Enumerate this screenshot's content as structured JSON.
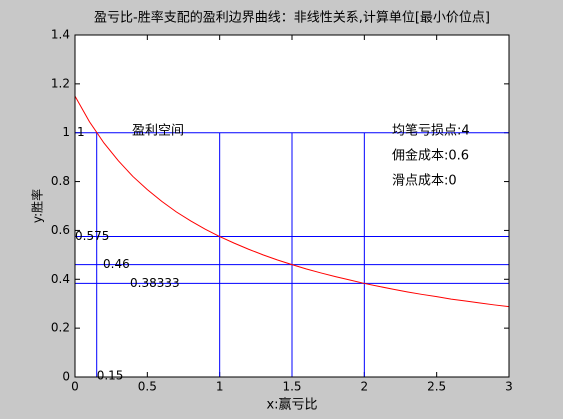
{
  "chart_data": {
    "type": "line",
    "title": "盈亏比-胜率支配的盈利边界曲线：非线性关系,计算单位[最小价位点]",
    "xlabel": "x:赢亏比",
    "ylabel": "y:胜率",
    "x": [
      0,
      0.1,
      0.2,
      0.3,
      0.4,
      0.5,
      0.6,
      0.7,
      0.8,
      0.9,
      1.0,
      1.1,
      1.2,
      1.3,
      1.4,
      1.5,
      1.6,
      1.7,
      1.8,
      1.9,
      2.0,
      2.1,
      2.2,
      2.3,
      2.4,
      2.5,
      2.6,
      2.7,
      2.8,
      2.9,
      3.0
    ],
    "series": [
      {
        "color": "#ff0000",
        "values": [
          1.15,
          1.045,
          0.958,
          0.885,
          0.821,
          0.767,
          0.719,
          0.676,
          0.639,
          0.605,
          0.575,
          0.548,
          0.523,
          0.5,
          0.479,
          0.46,
          0.442,
          0.426,
          0.411,
          0.397,
          0.383,
          0.371,
          0.359,
          0.348,
          0.338,
          0.329,
          0.319,
          0.311,
          0.303,
          0.295,
          0.288
        ]
      }
    ],
    "hlines": [
      1,
      0.575,
      0.46,
      0.38333
    ],
    "vlines": [
      0.15,
      1,
      1.5,
      2
    ],
    "refline_color": "#0000ff",
    "annotations": [
      "盈利空间",
      "均笔亏损点:4",
      "佣金成本:0.6",
      "滑点成本:0"
    ],
    "xlim": [
      0,
      3
    ],
    "xticks": [
      0,
      0.5,
      1,
      1.5,
      2,
      2.5,
      3
    ],
    "ylim": [
      0,
      1.4
    ],
    "yticks": [
      0,
      0.2,
      0.4,
      0.6,
      0.8,
      1,
      1.2,
      1.4
    ],
    "grid": false
  }
}
